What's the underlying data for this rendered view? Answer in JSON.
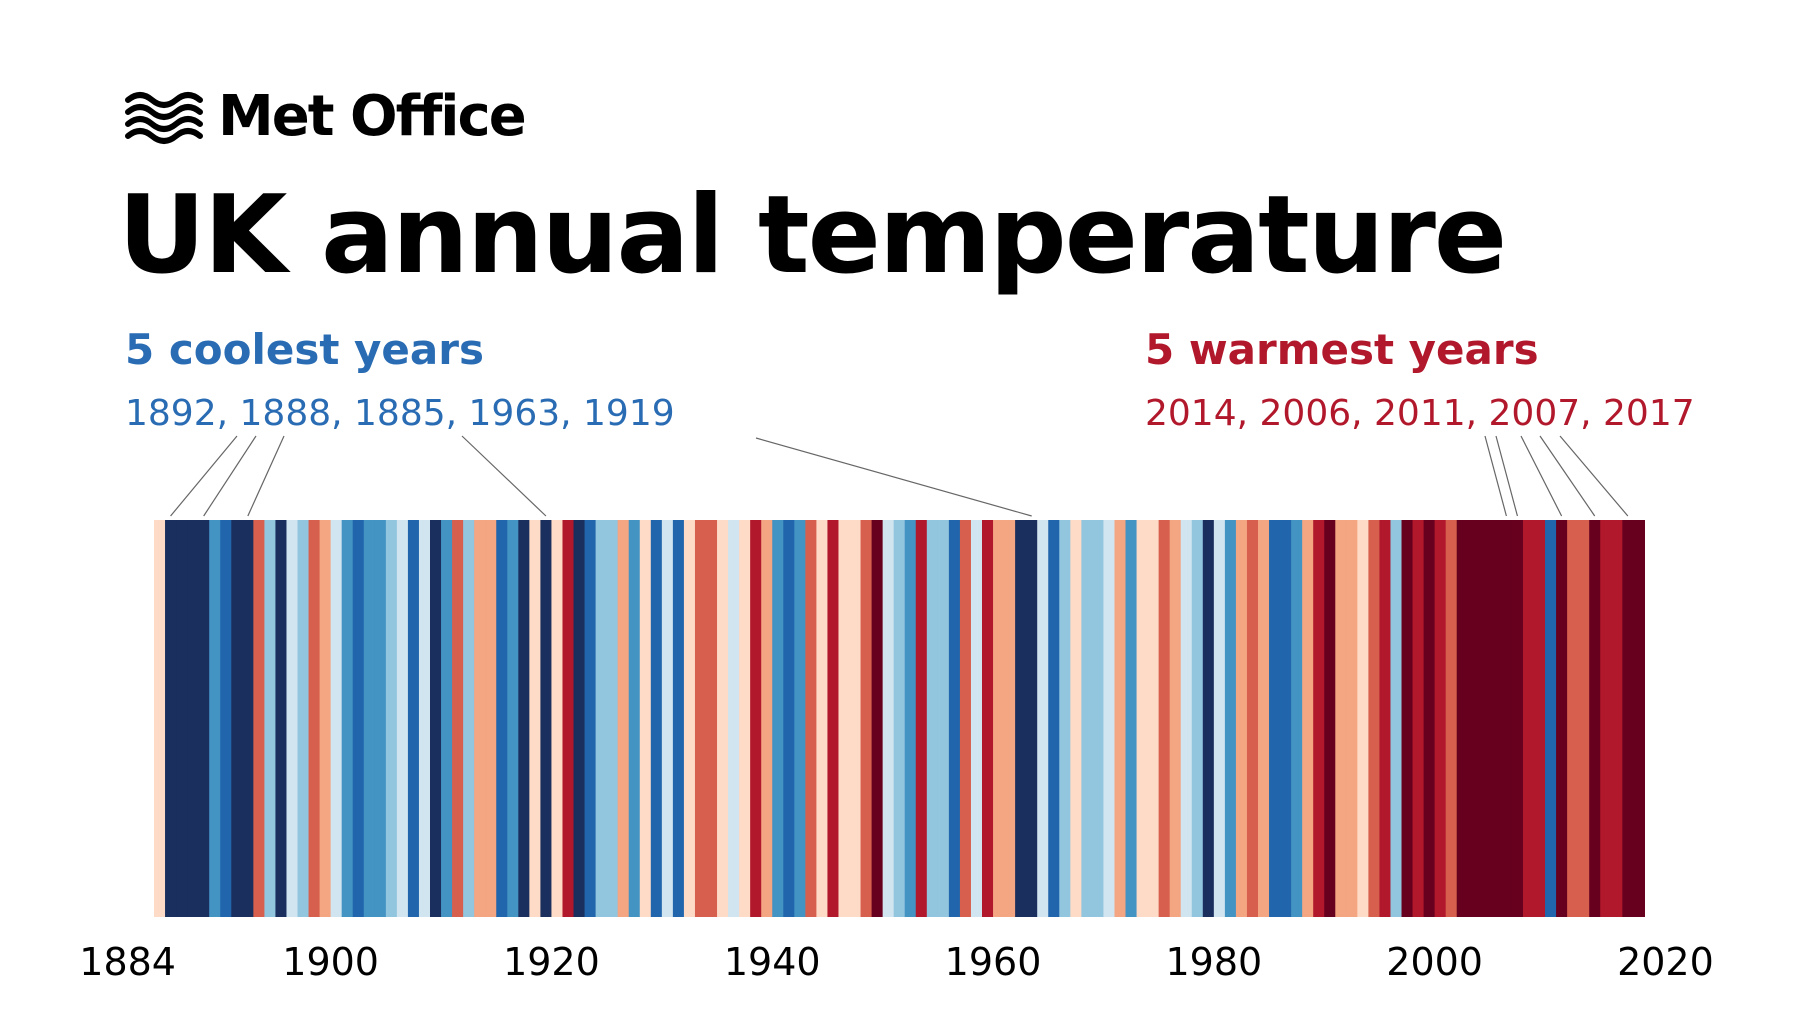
{
  "logo": {
    "text": "Met Office",
    "icon": "wave-lines-icon"
  },
  "chart_data": {
    "type": "heatmap",
    "title": "UK annual temperature",
    "year_start": 1884,
    "year_end": 2018,
    "palette": [
      "#1b2f5e",
      "#2166ac",
      "#4393c3",
      "#92c5de",
      "#d1e5f0",
      "#fddbc7",
      "#f4a582",
      "#d6604d",
      "#b2182b",
      "#67001f"
    ],
    "stripe_color_index": [
      5,
      0,
      0,
      0,
      0,
      2,
      1,
      0,
      0,
      7,
      3,
      0,
      4,
      3,
      7,
      6,
      4,
      2,
      1,
      2,
      2,
      3,
      4,
      1,
      4,
      0,
      2,
      7,
      3,
      6,
      6,
      1,
      2,
      0,
      5,
      0,
      5,
      8,
      0,
      1,
      3,
      3,
      6,
      2,
      5,
      1,
      4,
      1,
      5,
      7,
      7,
      5,
      4,
      5,
      8,
      6,
      2,
      1,
      2,
      7,
      5,
      8,
      5,
      5,
      7,
      9,
      4,
      3,
      2,
      8,
      3,
      3,
      1,
      7,
      4,
      8,
      6,
      6,
      0,
      0,
      4,
      1,
      3,
      5,
      3,
      3,
      4,
      6,
      2,
      5,
      5,
      7,
      6,
      4,
      3,
      0,
      4,
      2,
      6,
      7,
      6,
      1,
      1,
      2,
      6,
      8,
      9,
      6,
      6,
      5,
      7,
      8,
      3,
      9,
      8,
      9,
      8,
      7,
      9,
      9,
      9,
      9,
      9,
      9,
      8,
      8,
      1,
      9,
      7,
      7,
      9,
      8,
      8,
      9,
      9
    ],
    "x_ticks": [
      "1884",
      "1900",
      "1920",
      "1940",
      "1960",
      "1980",
      "2000",
      "2020"
    ],
    "coolest": {
      "heading": "5 coolest years",
      "years_text": "1892, 1888, 1885, 1963, 1919",
      "years": [
        1892,
        1888,
        1885,
        1963,
        1919
      ],
      "color": "#2a6cb3"
    },
    "warmest": {
      "heading": "5 warmest years",
      "years_text": "2014, 2006, 2011, 2007, 2017",
      "years": [
        2014,
        2006,
        2011,
        2007,
        2017
      ],
      "color": "#b2182b"
    }
  }
}
